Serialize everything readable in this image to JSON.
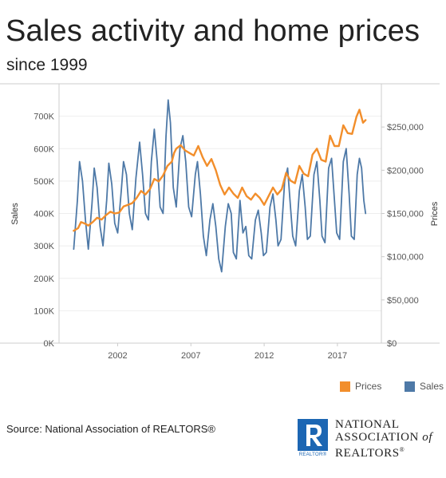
{
  "header": {
    "title": "Sales activity and home prices",
    "subtitle": "since 1999"
  },
  "legend": {
    "items": [
      {
        "label": "Prices",
        "color": "#f28e2b"
      },
      {
        "label": "Sales",
        "color": "#4e79a7"
      }
    ]
  },
  "footer": {
    "source": "Source: National Association of REALTORS®",
    "logo_text": "NATIONAL ASSOCIATION of REALTORS®",
    "logo_tag": "REALTOR®"
  },
  "chart_data": {
    "type": "line",
    "x_ticks": [
      "2002",
      "2007",
      "2012",
      "2017"
    ],
    "x_tick_values": [
      2002,
      2007,
      2012,
      2017
    ],
    "x_range": [
      1998,
      2020
    ],
    "y_left": {
      "label": "Sales",
      "ticks": [
        "0K",
        "100K",
        "200K",
        "300K",
        "400K",
        "500K",
        "600K",
        "700K"
      ],
      "range": [
        0,
        800000
      ]
    },
    "y_right": {
      "label": "Prices",
      "ticks": [
        "$0",
        "$50,000",
        "$100,000",
        "$150,000",
        "$200,000",
        "$250,000"
      ],
      "range": [
        0,
        300000
      ]
    },
    "grid": true,
    "legend_position": "bottom-right",
    "series": [
      {
        "name": "Sales",
        "color": "#4e79a7",
        "axis": "left",
        "points": [
          [
            1999.0,
            290000
          ],
          [
            1999.25,
            440000
          ],
          [
            1999.4,
            560000
          ],
          [
            1999.6,
            500000
          ],
          [
            1999.8,
            380000
          ],
          [
            2000.0,
            290000
          ],
          [
            2000.25,
            430000
          ],
          [
            2000.4,
            540000
          ],
          [
            2000.6,
            480000
          ],
          [
            2000.8,
            360000
          ],
          [
            2001.0,
            300000
          ],
          [
            2001.25,
            440000
          ],
          [
            2001.4,
            555000
          ],
          [
            2001.6,
            490000
          ],
          [
            2001.8,
            370000
          ],
          [
            2002.0,
            340000
          ],
          [
            2002.25,
            470000
          ],
          [
            2002.4,
            560000
          ],
          [
            2002.6,
            520000
          ],
          [
            2002.8,
            400000
          ],
          [
            2003.0,
            350000
          ],
          [
            2003.25,
            510000
          ],
          [
            2003.5,
            620000
          ],
          [
            2003.7,
            520000
          ],
          [
            2003.9,
            400000
          ],
          [
            2004.1,
            380000
          ],
          [
            2004.3,
            560000
          ],
          [
            2004.5,
            660000
          ],
          [
            2004.7,
            560000
          ],
          [
            2004.9,
            420000
          ],
          [
            2005.1,
            400000
          ],
          [
            2005.3,
            640000
          ],
          [
            2005.45,
            750000
          ],
          [
            2005.6,
            680000
          ],
          [
            2005.8,
            480000
          ],
          [
            2006.0,
            420000
          ],
          [
            2006.25,
            600000
          ],
          [
            2006.45,
            640000
          ],
          [
            2006.65,
            560000
          ],
          [
            2006.85,
            420000
          ],
          [
            2007.05,
            390000
          ],
          [
            2007.3,
            520000
          ],
          [
            2007.45,
            560000
          ],
          [
            2007.65,
            460000
          ],
          [
            2007.85,
            330000
          ],
          [
            2008.05,
            270000
          ],
          [
            2008.3,
            380000
          ],
          [
            2008.5,
            430000
          ],
          [
            2008.7,
            360000
          ],
          [
            2008.9,
            260000
          ],
          [
            2009.1,
            220000
          ],
          [
            2009.35,
            360000
          ],
          [
            2009.55,
            430000
          ],
          [
            2009.75,
            400000
          ],
          [
            2009.9,
            280000
          ],
          [
            2010.1,
            260000
          ],
          [
            2010.35,
            440000
          ],
          [
            2010.55,
            340000
          ],
          [
            2010.75,
            360000
          ],
          [
            2010.95,
            270000
          ],
          [
            2011.15,
            260000
          ],
          [
            2011.4,
            380000
          ],
          [
            2011.6,
            410000
          ],
          [
            2011.8,
            340000
          ],
          [
            2011.95,
            270000
          ],
          [
            2012.15,
            280000
          ],
          [
            2012.4,
            420000
          ],
          [
            2012.6,
            460000
          ],
          [
            2012.8,
            380000
          ],
          [
            2012.95,
            300000
          ],
          [
            2013.15,
            320000
          ],
          [
            2013.4,
            500000
          ],
          [
            2013.6,
            540000
          ],
          [
            2013.8,
            420000
          ],
          [
            2013.95,
            330000
          ],
          [
            2014.15,
            300000
          ],
          [
            2014.4,
            470000
          ],
          [
            2014.6,
            520000
          ],
          [
            2014.8,
            420000
          ],
          [
            2014.95,
            320000
          ],
          [
            2015.15,
            330000
          ],
          [
            2015.4,
            520000
          ],
          [
            2015.6,
            560000
          ],
          [
            2015.8,
            440000
          ],
          [
            2015.95,
            330000
          ],
          [
            2016.15,
            310000
          ],
          [
            2016.4,
            540000
          ],
          [
            2016.6,
            570000
          ],
          [
            2016.8,
            440000
          ],
          [
            2016.95,
            340000
          ],
          [
            2017.15,
            320000
          ],
          [
            2017.4,
            560000
          ],
          [
            2017.6,
            600000
          ],
          [
            2017.8,
            460000
          ],
          [
            2017.95,
            330000
          ],
          [
            2018.15,
            320000
          ],
          [
            2018.35,
            520000
          ],
          [
            2018.5,
            570000
          ],
          [
            2018.65,
            540000
          ],
          [
            2018.8,
            440000
          ],
          [
            2018.92,
            400000
          ]
        ]
      },
      {
        "name": "Prices",
        "color": "#f28e2b",
        "axis": "right",
        "points": [
          [
            1999.0,
            130000
          ],
          [
            1999.3,
            133000
          ],
          [
            1999.5,
            140000
          ],
          [
            1999.8,
            138000
          ],
          [
            2000.0,
            136000
          ],
          [
            2000.3,
            140000
          ],
          [
            2000.6,
            145000
          ],
          [
            2000.9,
            143000
          ],
          [
            2001.2,
            148000
          ],
          [
            2001.5,
            152000
          ],
          [
            2001.8,
            150000
          ],
          [
            2002.1,
            151000
          ],
          [
            2002.4,
            158000
          ],
          [
            2002.7,
            160000
          ],
          [
            2003.0,
            162000
          ],
          [
            2003.3,
            168000
          ],
          [
            2003.6,
            176000
          ],
          [
            2003.9,
            172000
          ],
          [
            2004.2,
            178000
          ],
          [
            2004.5,
            190000
          ],
          [
            2004.8,
            187000
          ],
          [
            2005.1,
            194000
          ],
          [
            2005.4,
            205000
          ],
          [
            2005.7,
            210000
          ],
          [
            2005.85,
            220000
          ],
          [
            2006.0,
            225000
          ],
          [
            2006.3,
            229000
          ],
          [
            2006.6,
            223000
          ],
          [
            2006.9,
            220000
          ],
          [
            2007.2,
            217000
          ],
          [
            2007.5,
            228000
          ],
          [
            2007.8,
            215000
          ],
          [
            2008.1,
            205000
          ],
          [
            2008.4,
            213000
          ],
          [
            2008.7,
            200000
          ],
          [
            2009.0,
            183000
          ],
          [
            2009.3,
            172000
          ],
          [
            2009.6,
            180000
          ],
          [
            2009.9,
            173000
          ],
          [
            2010.2,
            168000
          ],
          [
            2010.5,
            180000
          ],
          [
            2010.8,
            170000
          ],
          [
            2011.1,
            166000
          ],
          [
            2011.4,
            173000
          ],
          [
            2011.7,
            168000
          ],
          [
            2012.0,
            160000
          ],
          [
            2012.3,
            170000
          ],
          [
            2012.6,
            180000
          ],
          [
            2012.9,
            172000
          ],
          [
            2013.2,
            178000
          ],
          [
            2013.5,
            197000
          ],
          [
            2013.8,
            188000
          ],
          [
            2014.1,
            185000
          ],
          [
            2014.4,
            205000
          ],
          [
            2014.7,
            196000
          ],
          [
            2015.0,
            193000
          ],
          [
            2015.3,
            218000
          ],
          [
            2015.6,
            225000
          ],
          [
            2015.9,
            212000
          ],
          [
            2016.2,
            210000
          ],
          [
            2016.5,
            240000
          ],
          [
            2016.8,
            228000
          ],
          [
            2017.1,
            228000
          ],
          [
            2017.4,
            252000
          ],
          [
            2017.7,
            243000
          ],
          [
            2018.0,
            242000
          ],
          [
            2018.3,
            262000
          ],
          [
            2018.5,
            270000
          ],
          [
            2018.75,
            255000
          ],
          [
            2018.92,
            258000
          ]
        ]
      }
    ]
  }
}
